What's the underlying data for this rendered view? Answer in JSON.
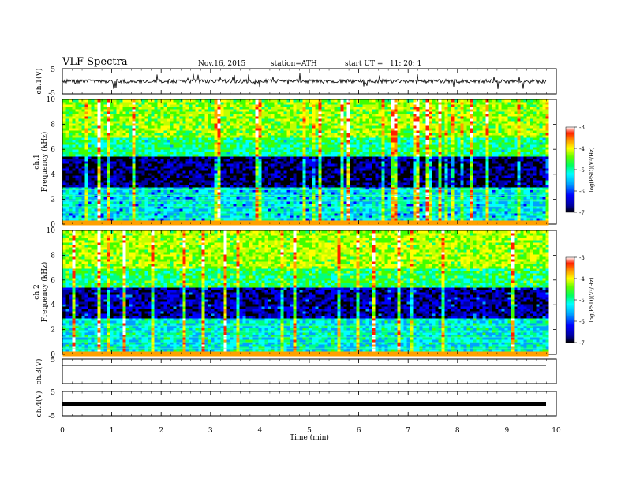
{
  "header": {
    "title": "VLF Spectra",
    "date": "Nov.16, 2015",
    "station": "station=ATH",
    "start": "start UT =   11: 20: 1"
  },
  "chart_data": [
    {
      "type": "line",
      "panel": "ch1-waveform",
      "ylabel": "ch.1(V)",
      "yticks": [
        "5",
        "-5"
      ],
      "ylim": [
        -5,
        5
      ],
      "trace": "dense noisy waveform centered near 0 V with frequent spikes"
    },
    {
      "type": "heatmap",
      "panel": "ch1-spectrogram",
      "ylabel": "ch.1\nFrequency (kHz)",
      "ylabel_lines": [
        "ch.1",
        "Frequency (kHz)"
      ],
      "ylim": [
        0,
        10
      ],
      "yticks": [
        "0",
        "2",
        "4",
        "6",
        "8",
        "10"
      ],
      "colorbar": {
        "label": "log(PSD)(V²/Hz)",
        "ticks": [
          "-3",
          "-4",
          "-5",
          "-6",
          "-7"
        ],
        "range": [
          -7,
          -3
        ]
      },
      "bands_khz": [
        {
          "from": 0,
          "to": 3,
          "level": -5.6
        },
        {
          "from": 3,
          "to": 5.5,
          "level": -6.8
        },
        {
          "from": 5.5,
          "to": 7,
          "level": -5.2
        },
        {
          "from": 7,
          "to": 10,
          "level": -4.6
        }
      ]
    },
    {
      "type": "heatmap",
      "panel": "ch2-spectrogram",
      "ylabel": "ch.2\nFrequency (kHz)",
      "ylabel_lines": [
        "ch.2",
        "Frequency (kHz)"
      ],
      "ylim": [
        0,
        10
      ],
      "yticks": [
        "0",
        "2",
        "4",
        "6",
        "8",
        "10"
      ],
      "colorbar": {
        "label": "log(PSD)(V²/Hz)",
        "ticks": [
          "-3",
          "-4",
          "-5",
          "-6",
          "-7"
        ],
        "range": [
          -7,
          -3
        ]
      },
      "bands_khz": [
        {
          "from": 0,
          "to": 3,
          "level": -5.5
        },
        {
          "from": 3,
          "to": 5.5,
          "level": -6.6
        },
        {
          "from": 5.5,
          "to": 7,
          "level": -5.1
        },
        {
          "from": 7,
          "to": 10,
          "level": -4.5
        }
      ]
    },
    {
      "type": "line",
      "panel": "ch3-waveform",
      "ylabel": "ch.3(V)",
      "yticks": [
        "5"
      ],
      "ylim": [
        -5,
        5
      ],
      "trace": "flat trace near 0 V"
    },
    {
      "type": "line",
      "panel": "ch4-waveform",
      "ylabel": "ch.4(V)",
      "yticks": [
        "5",
        "-5"
      ],
      "ylim": [
        -5,
        5
      ],
      "trace": "thick flat trace near 0 V"
    }
  ],
  "xaxis": {
    "label": "Time (min)",
    "ticks": [
      "0",
      "1",
      "2",
      "3",
      "4",
      "5",
      "6",
      "7",
      "8",
      "9",
      "10"
    ],
    "xlim": [
      0,
      10
    ],
    "data_end": 9.8
  },
  "colors": {
    "scale": [
      "#000000",
      "#0000a0",
      "#0000ff",
      "#00a0ff",
      "#00ffff",
      "#00ff80",
      "#40ff00",
      "#c0ff00",
      "#ffff00",
      "#ffa000",
      "#ff2000",
      "#ffffff"
    ]
  }
}
